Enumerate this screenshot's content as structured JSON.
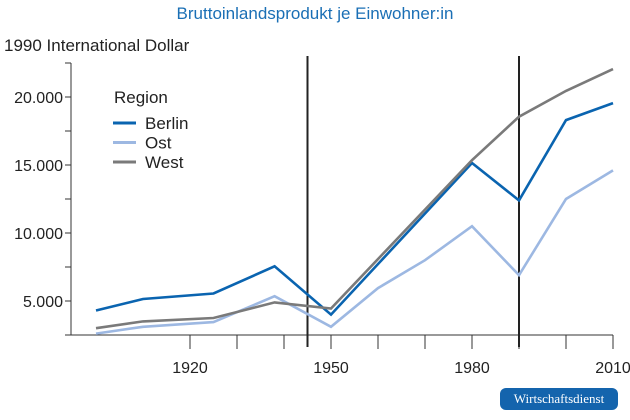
{
  "chart_data": {
    "type": "line",
    "title": "Bruttoinlandsprodukt je Einwohner:in",
    "ylabel": "1990 International Dollar",
    "xlabel": "",
    "xlim": [
      1893,
      2010
    ],
    "ylim": [
      2500,
      22500
    ],
    "x_ticks": [
      1920,
      1950,
      1980,
      2010
    ],
    "y_ticks": [
      5000,
      10000,
      15000,
      20000
    ],
    "y_tick_labels": [
      "5.000",
      "10.000",
      "15.000",
      "20.000"
    ],
    "vertical_lines": [
      1945,
      1990
    ],
    "legend": {
      "title": "Region",
      "placement": "top-left"
    },
    "series": [
      {
        "name": "Berlin",
        "color": "#0a64b0",
        "x": [
          1900,
          1910,
          1925,
          1938,
          1950,
          1980,
          1990,
          2000,
          2010
        ],
        "values": [
          4300,
          5150,
          5550,
          7550,
          4000,
          15150,
          12400,
          18300,
          19550
        ]
      },
      {
        "name": "Ost",
        "color": "#9db8e2",
        "x": [
          1900,
          1910,
          1925,
          1938,
          1950,
          1960,
          1970,
          1980,
          1990,
          2000,
          2010
        ],
        "values": [
          2600,
          3100,
          3450,
          5350,
          3100,
          5950,
          8000,
          10500,
          6900,
          12500,
          14600
        ]
      },
      {
        "name": "West",
        "color": "#7a7a7a",
        "x": [
          1900,
          1910,
          1925,
          1938,
          1950,
          1980,
          1990,
          2000,
          2010
        ],
        "values": [
          3000,
          3500,
          3750,
          4900,
          4450,
          15350,
          18550,
          20450,
          22050
        ]
      }
    ]
  },
  "badge": "Wirtschaftsdienst"
}
